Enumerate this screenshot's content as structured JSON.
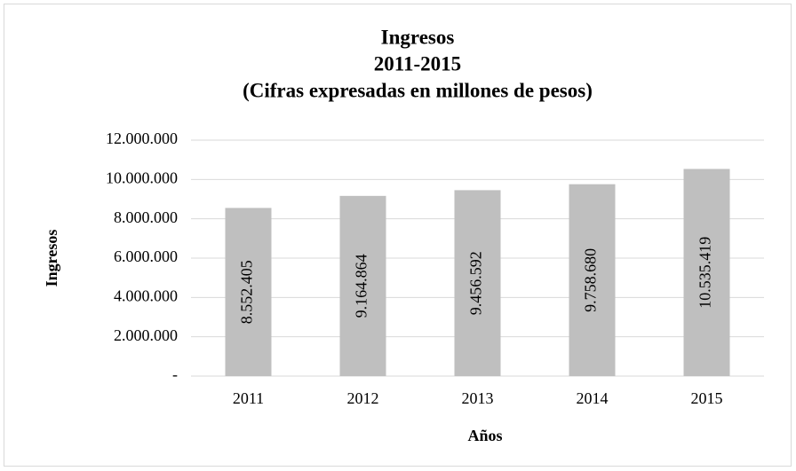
{
  "chart_data": {
    "type": "bar",
    "title": [
      "Ingresos",
      "2011-2015",
      "(Cifras expresadas en millones de pesos)"
    ],
    "x_label": "Años",
    "y_label": "Ingresos",
    "categories": [
      "2011",
      "2012",
      "2013",
      "2014",
      "2015"
    ],
    "values": [
      8552405,
      9164864,
      9456592,
      9758680,
      10535419
    ],
    "value_labels": [
      "8.552.405",
      "9.164.864",
      "9.456.592",
      "9.758.680",
      "10.535.419"
    ],
    "color": "#bfbfbf",
    "ylim": [
      0,
      12000000
    ],
    "yticks": [
      {
        "value": 0,
        "label": "-"
      },
      {
        "value": 2000000,
        "label": "2.000.000"
      },
      {
        "value": 4000000,
        "label": "4.000.000"
      },
      {
        "value": 6000000,
        "label": "6.000.000"
      },
      {
        "value": 8000000,
        "label": "8.000.000"
      },
      {
        "value": 10000000,
        "label": "10.000.000"
      },
      {
        "value": 12000000,
        "label": "12.000.000"
      }
    ],
    "grid": true
  }
}
